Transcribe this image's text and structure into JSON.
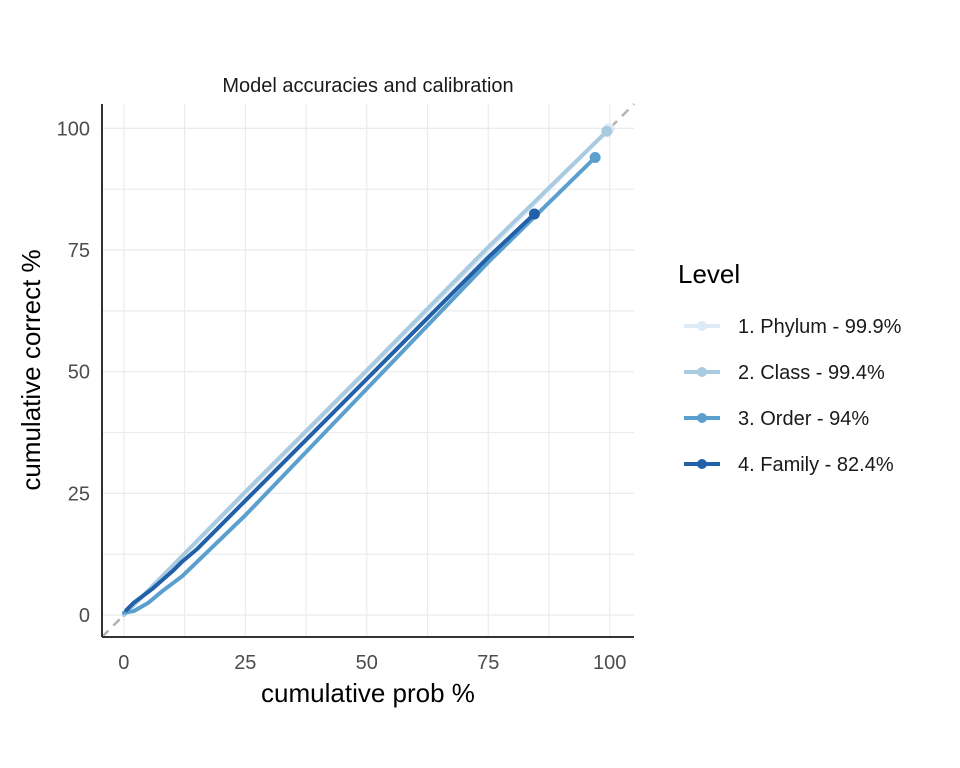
{
  "chart_data": {
    "type": "line",
    "title": "Model accuracies and calibration",
    "xlabel": "cumulative prob %",
    "ylabel": "cumulative correct %",
    "xlim": [
      -4.5,
      105
    ],
    "ylim": [
      -4.5,
      105
    ],
    "xticks": [
      "0",
      "25",
      "50",
      "75",
      "100"
    ],
    "yticks": [
      "0",
      "25",
      "50",
      "75",
      "100"
    ],
    "grid": true,
    "reference_line": "y = x (dashed)",
    "legend": {
      "title": "Level",
      "position": "right"
    },
    "series": [
      {
        "name": "1. Phylum - 99.9%",
        "color": "#deebf7",
        "x": [
          0,
          99.9
        ],
        "y": [
          0,
          99.9
        ]
      },
      {
        "name": "2. Class - 99.4%",
        "color": "#a9cbe2",
        "x": [
          0,
          25,
          50,
          75,
          99.4
        ],
        "y": [
          0,
          25.3,
          50.3,
          75.6,
          99.4
        ]
      },
      {
        "name": "3. Order - 94%",
        "color": "#5b9fcf",
        "x": [
          0,
          2,
          5,
          8,
          12,
          25,
          50,
          75,
          97
        ],
        "y": [
          0.5,
          0.8,
          2.5,
          5,
          8,
          20.5,
          46.5,
          72.5,
          94
        ]
      },
      {
        "name": "4. Family - 82.4%",
        "color": "#2260a8",
        "x": [
          0.5,
          2,
          4,
          6,
          10,
          12,
          15,
          25,
          50,
          75,
          84.5
        ],
        "y": [
          1,
          2.5,
          4,
          5.5,
          9,
          11,
          13.5,
          23.5,
          48.5,
          73.5,
          82.4
        ]
      }
    ]
  }
}
